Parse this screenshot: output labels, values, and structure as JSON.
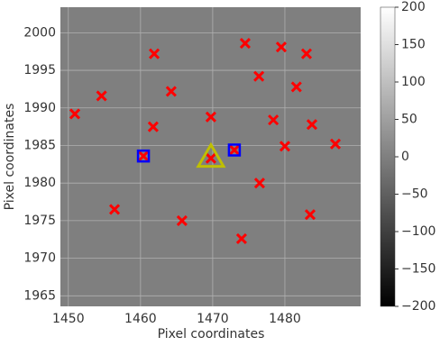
{
  "chart_data": {
    "type": "scatter",
    "xlabel": "Pixel coordinates",
    "ylabel": "Pixel coordinates",
    "xlim": [
      1448.9,
      1490.5
    ],
    "ylim": [
      1963.6,
      2003.4
    ],
    "xticks": [
      1450,
      1460,
      1470,
      1480
    ],
    "yticks": [
      1965,
      1970,
      1975,
      1980,
      1985,
      1990,
      1995,
      2000
    ],
    "grid": true,
    "background_color": "#7f7f7f",
    "series": [
      {
        "color": "#ff0000",
        "marker": "x",
        "x": [
          1450.9,
          1454.6,
          1456.4,
          1461.9,
          1461.75,
          1460.4,
          1464.25,
          1465.75,
          1469.75,
          1469.75,
          1473,
          1474.5,
          1476.4,
          1476.5,
          1474,
          1478.4,
          1479.5,
          1480,
          1481.6,
          1483,
          1483.75,
          1483.5,
          1487
        ],
        "y": [
          1989.2,
          1991.6,
          1976.5,
          1997.2,
          1987.5,
          1983.6,
          1992.2,
          1975.0,
          1988.8,
          1983.3,
          1984.4,
          1998.6,
          1994.2,
          1980.0,
          1972.6,
          1988.4,
          1998.1,
          1984.9,
          1992.8,
          1997.2,
          1987.8,
          1975.8,
          1985.2
        ]
      },
      {
        "color": "#0000ff",
        "marker": "square",
        "x": [
          1460.4,
          1473
        ],
        "y": [
          1983.6,
          1984.4
        ]
      },
      {
        "color": "#bfbf00",
        "marker": "triangle",
        "x": [
          1469.75
        ],
        "y": [
          1983.3
        ]
      }
    ],
    "colorbar": {
      "cmap": "gray",
      "lim": [
        -200,
        200
      ],
      "ticks": [
        {
          "value": -200,
          "label": "−200"
        },
        {
          "value": -150,
          "label": "−150"
        },
        {
          "value": -100,
          "label": "−100"
        },
        {
          "value": -50,
          "label": "−50"
        },
        0,
        50,
        100,
        150,
        200
      ]
    }
  }
}
